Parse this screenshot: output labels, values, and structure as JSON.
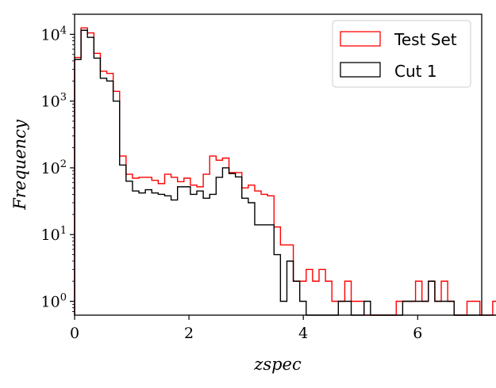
{
  "chart_data": {
    "type": "histogram-step",
    "xlabel": "zspec",
    "ylabel": "Frequency",
    "xlim": [
      0,
      7.12
    ],
    "ylim": [
      0.62,
      20000
    ],
    "yscale": "log",
    "grid": false,
    "legend_position": "top-right",
    "x_ticks": [
      {
        "value": 0,
        "label": "0"
      },
      {
        "value": 2,
        "label": "2"
      },
      {
        "value": 4,
        "label": "4"
      },
      {
        "value": 6,
        "label": "6"
      }
    ],
    "y_ticks": [
      {
        "value": 1,
        "base": "10",
        "exp": "0"
      },
      {
        "value": 10,
        "base": "10",
        "exp": "1"
      },
      {
        "value": 100,
        "base": "10",
        "exp": "2"
      },
      {
        "value": 1000,
        "base": "10",
        "exp": "3"
      },
      {
        "value": 10000,
        "base": "10",
        "exp": "4"
      }
    ],
    "bin_width": 0.1125,
    "series": [
      {
        "name": "Test Set",
        "color": "#ff0000",
        "counts": [
          4500,
          12500,
          10500,
          5200,
          2800,
          2600,
          1400,
          150,
          80,
          70,
          72,
          72,
          65,
          58,
          80,
          72,
          62,
          70,
          55,
          52,
          80,
          150,
          130,
          140,
          85,
          85,
          50,
          55,
          45,
          40,
          38,
          13,
          7,
          7,
          2,
          2,
          3,
          2,
          3,
          2,
          1,
          1,
          2,
          1,
          1,
          0,
          0,
          0,
          0,
          0,
          1,
          1,
          1,
          2,
          1,
          2,
          1,
          2,
          1,
          0,
          0,
          1,
          1,
          0,
          0,
          1,
          1,
          1,
          3
        ],
        "start_bin": 0
      },
      {
        "name": "Cut 1",
        "color": "#000000",
        "counts": [
          4200,
          11500,
          9000,
          4400,
          2200,
          2000,
          1000,
          110,
          63,
          45,
          42,
          47,
          42,
          40,
          38,
          33,
          52,
          52,
          40,
          45,
          35,
          40,
          72,
          100,
          82,
          73,
          35,
          30,
          14,
          14,
          14,
          5,
          1,
          4,
          2,
          1,
          0,
          0,
          0,
          0,
          0,
          1,
          1,
          0,
          0,
          1,
          0,
          0,
          0,
          0,
          0,
          1,
          1,
          1,
          1,
          2,
          1,
          1,
          1,
          0,
          0,
          0,
          0,
          0,
          0,
          0,
          0,
          0,
          0
        ],
        "start_bin": 0
      }
    ]
  }
}
